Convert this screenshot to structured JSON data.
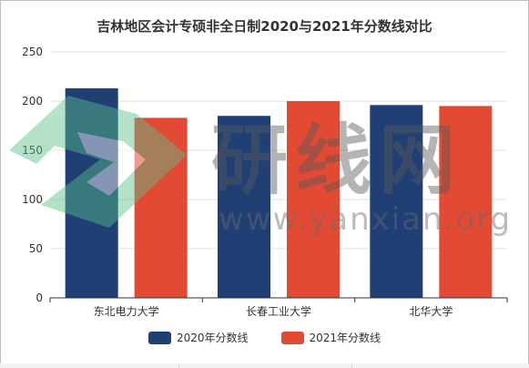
{
  "chart_data": {
    "type": "bar",
    "title": "吉林地区会计专硕非全日制2020与2021年分数线对比",
    "categories": [
      "东北电力大学",
      "长春工业大学",
      "北华大学"
    ],
    "series": [
      {
        "name": "2020年分数线",
        "values": [
          213,
          185,
          196
        ],
        "color": "#1f3f75"
      },
      {
        "name": "2021年分数线",
        "values": [
          183,
          200,
          195
        ],
        "color": "#e34a33"
      }
    ],
    "ylim": [
      0,
      250
    ],
    "yticks": [
      0,
      50,
      100,
      150,
      200,
      250
    ],
    "grid": true,
    "legend_position": "bottom-center"
  },
  "watermark": {
    "text_cn": "研线网",
    "text_en": "www.yanxian.org",
    "logo_color": "#58c08a"
  }
}
